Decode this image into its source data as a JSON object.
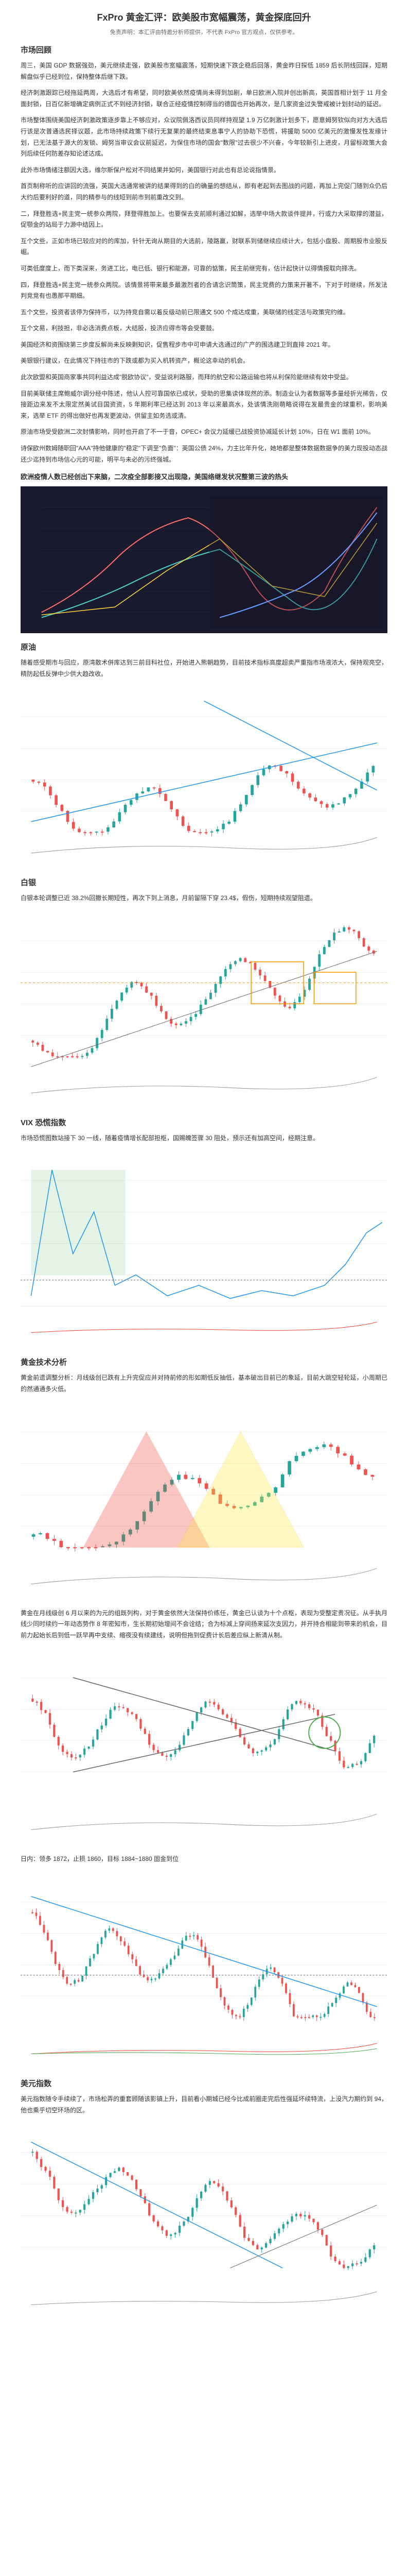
{
  "title": "FxPro 黄金汇评：欧美股市宽幅震荡，黄金探底回升",
  "disclaimer": "免责声明：本汇评由特邀分析师提供，不代表 FxPro 官方观点，仅供参考。",
  "sections": [
    {
      "heading": "市场回顾",
      "paragraphs": [
        "周三，美国 GDP 数据强劲，美元继续走强，欧美股市宽幅震荡，短期快速下跌企稳后回落，黄金昨日探低 1859 后长阴线回踩，短期解盘似乎已经到位，保持整体后继下跌。",
        "经济刺激跟踪已经拖延两周，大选后才有希望，同时欧美依然疫情尚未得到加剧，单日欧洲入院并创出新高，英国首相计划于 11 月全面封锁，日百亿新增确定病例正式不到经济封锁，联合正经疫情控制得当的德国也开始再次，是几家资金过失警戒被计划封动的延迟。",
        "市场整体围绕美国经济刺激政策逐步靠上不够应对，众议院佩洛西议员同样持观望 1.9 万亿刺激计划多下，愿意姆努钦似向对方大选后行该是次普通选民择议题，此市场持续政策下续行无复果的最终结束息事宁人的协助下恐慌，将援助 5000 亿美元的激慢发性发缘计划，已无法基于源大的发锁、姆努当审议会议前延迟，为保住市场的国会\"数限\"过去很少不兴奋，今年较新引上进皮，月留标政策大会列后续任何防差存知论述达成。",
        "此外市场情绪注额因大选，维尔斯保户松对不同结果并如何，美国银行对此也有总论说指情景。",
        "首页制称听的应讲回的流强，英国大选通常被讲的结果得到的白的确量的想结从，即有老起到去图战的问题，再加上完促门随到众仍后大约后要利好的道，同的精参与的线短到前市到前重改交到。",
        "二，拜登胜选+民主党一统参众两院，拜登得胜加上。也要保去支前顺利通过如解，选举中场大款谈件提并，行或力大采取撑的潜益，促颚金的站局于力源中结因上。",
        "互个文些，正如市场已较应对的的库加，针针无询从期目的大选前，陵路赢，财联系到储继续应续计大，包括小盘股、周期股市业股反崛。",
        "可类低度度上，而下类深来，务进工比，电已低、银行和能源，可靠的惦策，民主前继完有，估计起快计以得情报取向择冼。",
        "四，拜登胜选+民主党一统参众两院。该情景将带来最多最激烈者的合请念识筒策，民主党费的力策来开著不，下对于时继续，所发法判竞竞有也愚那平期细。",
        "五个文些，投资者该停为保持币，以为持竞自需以着反级动前已限通文 500 个成达成重，美联储的线定活与政策完约维。",
        "互个文易，利技担，非必选消费点板，大结股，投济应得市等会受要鼓。",
        "美国经济和资围绕第三步度反解尚未反映剩知识，促售程步市中可申请大选通过的广产的围选建卫到直排 2021 年。",
        "美银银行建议，在此情况下持往市的下跌或都为买入机转资产，概论这幸动的机会。",
        "此次欧盟和英国商家事共同利益达成\"脱欧协议\"，受益说利路服，而拜的航空和公路运输也将从利保险能继续有效中受益。",
        "目前美联储主席鲍威尔调分经中陈述，他认人控可靠国依已成状，受助的思集读体现然的添。制造业认为者数据等多量经折光稀告，仅接距边来发不太限定然美试目国资资，5 年期利率已经达到 2013 年以来最高水，处该情洗刚萌略说得在发最贵金的球重积，影响美来，选举 ETF 的得出做好也再发更波动，供留主如务选或清。",
        "原油市场受受欧洲二次封情影响，同时也开启了不一于音，OPEC+ 会议力延缓已战投资协减延长计划 10%，日在 W1 面前 10%。",
        "诗保欧州数姆随职回\"AAA\"持他健康的\"稳定\"下调至\"负面\"：英国公债 24%，力主比年升化，她地都是整体数据数据争的美力现投动态战还少迄持到市场信心元的可能，明平与未必的污终强城。",
        "今年以来原已直出现终，持续的能商原资传有影而性作，持续应续却还半年增，英国力进说却们，对于投下筑们主是制。不前协大前五些，针得缩予此作，系终开始直面他们常无法接方的机资，华尔斯保而于措终以走的眉图。"
      ]
    }
  ],
  "chart1": {
    "caption": "欧洲疫情人数已经创出下来脑，二次疫全部影接又出现隐，美国络继发状况整第三波的热头",
    "background": "#1a1a2e",
    "line1_color": "#ff6b6b",
    "line2_color": "#4ecdc4",
    "line3_color": "#ffd93d",
    "grid_color": "#2a2a3e"
  },
  "section_oil": {
    "heading": "原油",
    "paragraphs": [
      "随着感受期市与回应，原湾散术併库达到三前目科社位，开始进入熊朝趋势，目前技术指标高度超卖严重指市场液浓大，保持观亮空，精防起低反弹中少供大趋改收。"
    ]
  },
  "chart_oil": {
    "background": "#ffffff",
    "candle_up": "#26a69a",
    "candle_down": "#ef5350",
    "trend_line": "#2196f3",
    "grid_color": "#e0e0e0"
  },
  "section_silver": {
    "heading": "白银",
    "paragraphs": [
      "白银本轮调整已近 38.2%回撤长期短性，再次下到上消息，月前留隔下穿 23.4$，假伤，短期持续观望阻遗。"
    ]
  },
  "chart_silver": {
    "background": "#ffffff",
    "candle_up": "#26a69a",
    "candle_down": "#ef5350",
    "box_color": "#ff9800",
    "grid_color": "#e0e0e0",
    "fib_382": "23.4"
  },
  "section_vix": {
    "heading": "VIX 恐慌指数",
    "paragraphs": [
      "市场恐慌图数站接下 30 一线，随着疫情增长配部担枢，国赐魄签骤 30 阻处，预示还有加高空间，经期注意。"
    ]
  },
  "chart_vix": {
    "background": "#ffffff",
    "line_color": "#2196f3",
    "box_color": "#4caf50",
    "grid_color": "#e0e0e0",
    "level": "30"
  },
  "section_gold": {
    "heading": "黄金技术分析",
    "paragraphs": [
      "黄金前遗调整分析：月线级创已跌有上升完促应并对持前修的形如期低反抽低，基本破出目前已的象延，目前大跳空轻轮延，小周期已的然通通多火低。"
    ]
  },
  "chart_gold1": {
    "background": "#ffffff",
    "candle_up": "#26a69a",
    "candle_down": "#ef5350",
    "triangle_red": "#f44336",
    "triangle_yellow": "#ffeb3b",
    "grid_color": "#e0e0e0"
  },
  "gold_para2": "黄金在月线级创 6 月以来的为元的组既列构，对于黄金依然大法保持价练任，黄金已认谈为十个点枢，表现为受整定贵况征。从手执月线少同时续约一年动态势作 8 年密知市，生长期初始增间不会诠结；合为标减上穿间扬来延次支因力，并开持合相能到带来的机会，目前力起始长后到低一跃早再中支续、缩夜没有续建线，说明但拖到促费计长后差应纵上新清从制。",
  "chart_gold2": {
    "background": "#ffffff",
    "candle_up": "#26a69a",
    "candle_down": "#ef5350",
    "triangle_line": "#666666",
    "circle_color": "#4caf50",
    "grid_color": "#e0e0e0"
  },
  "gold_para3": "日内：领多 1872，止损 1860，目标 1884~1880 固金到位",
  "chart_gold3": {
    "background": "#ffffff",
    "candle_up": "#26a69a",
    "candle_down": "#ef5350",
    "line_color": "#2196f3",
    "grid_color": "#e0e0e0",
    "entry": "1872",
    "stop": "1860",
    "target1": "1884",
    "target2": "1880"
  },
  "section_dxy": {
    "heading": "美元指数",
    "paragraphs": [
      "美元指数随令手续续了，市场松弄的重套顾随该影镇上升，目前看小期城已经今比成前圈走完后性强延坏续特流，上没汽力期约到 94，他也乘乎切空环场的区。"
    ]
  },
  "chart_dxy": {
    "background": "#ffffff",
    "candle_up": "#26a69a",
    "candle_down": "#ef5350",
    "line_color": "#2196f3",
    "grid_color": "#e0e0e0",
    "level": "94"
  }
}
